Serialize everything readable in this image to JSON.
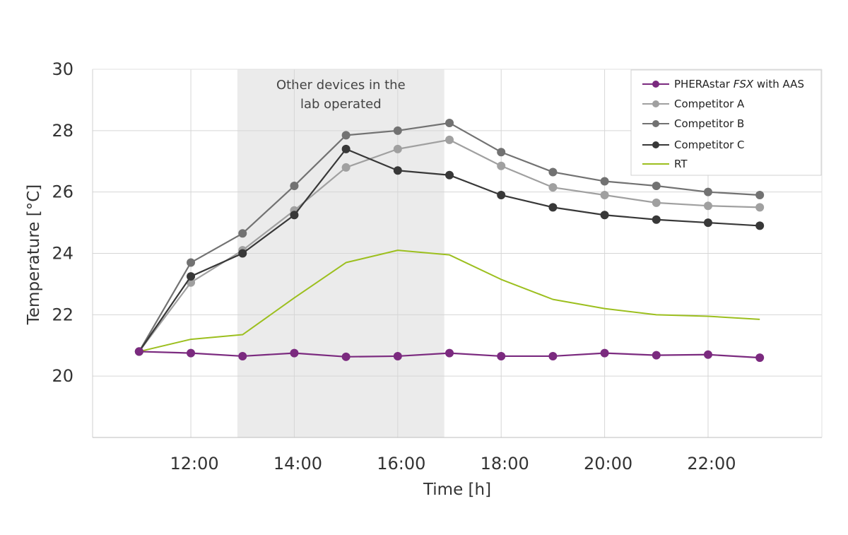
{
  "chart_data": {
    "type": "line",
    "xlabel": "Time [h]",
    "ylabel": "Temperature [°C]",
    "x": [
      11,
      12,
      13,
      14,
      15,
      16,
      17,
      18,
      19,
      20,
      21,
      22,
      23
    ],
    "xlim": [
      10.1,
      24.2
    ],
    "ylim": [
      18,
      30
    ],
    "yticks": [
      20,
      22,
      24,
      26,
      28,
      30
    ],
    "xticks": [
      {
        "value": 12,
        "label": "12:00"
      },
      {
        "value": 14,
        "label": "14:00"
      },
      {
        "value": 16,
        "label": "16:00"
      },
      {
        "value": 18,
        "label": "18:00"
      },
      {
        "value": 20,
        "label": "20:00"
      },
      {
        "value": 22,
        "label": "22:00"
      }
    ],
    "grid": true,
    "highlight": {
      "x_range": [
        12.9,
        16.9
      ],
      "color": "#ebebeb",
      "label_lines": [
        "Other devices in the",
        "lab operated"
      ]
    },
    "legend_position": "top-right",
    "series": [
      {
        "name": "PHERAstar",
        "name_italic": "FSX",
        "name_suffix": "with AAS",
        "color": "#7b2a7f",
        "markers": true,
        "values": [
          20.8,
          20.75,
          20.65,
          20.75,
          20.63,
          20.65,
          20.75,
          20.65,
          20.65,
          20.75,
          20.68,
          20.7,
          20.6
        ]
      },
      {
        "name": "Competitor A",
        "color": "#a0a0a0",
        "markers": true,
        "values": [
          20.8,
          23.05,
          24.1,
          25.4,
          26.8,
          27.4,
          27.7,
          26.85,
          26.15,
          25.9,
          25.65,
          25.55,
          25.5
        ]
      },
      {
        "name": "Competitor B",
        "color": "#727272",
        "markers": true,
        "values": [
          20.8,
          23.7,
          24.65,
          26.2,
          27.85,
          28.0,
          28.25,
          27.3,
          26.65,
          26.35,
          26.2,
          26.0,
          25.9
        ]
      },
      {
        "name": "Competitor C",
        "color": "#383838",
        "markers": true,
        "values": [
          20.8,
          23.25,
          24.0,
          25.25,
          27.4,
          26.7,
          26.55,
          25.9,
          25.5,
          25.25,
          25.1,
          25.0,
          24.9
        ]
      },
      {
        "name": "RT",
        "color": "#9cbf1e",
        "markers": false,
        "values": [
          20.8,
          21.2,
          21.35,
          22.55,
          23.7,
          24.1,
          23.95,
          23.15,
          22.5,
          22.2,
          22.0,
          21.95,
          21.85
        ]
      }
    ]
  }
}
